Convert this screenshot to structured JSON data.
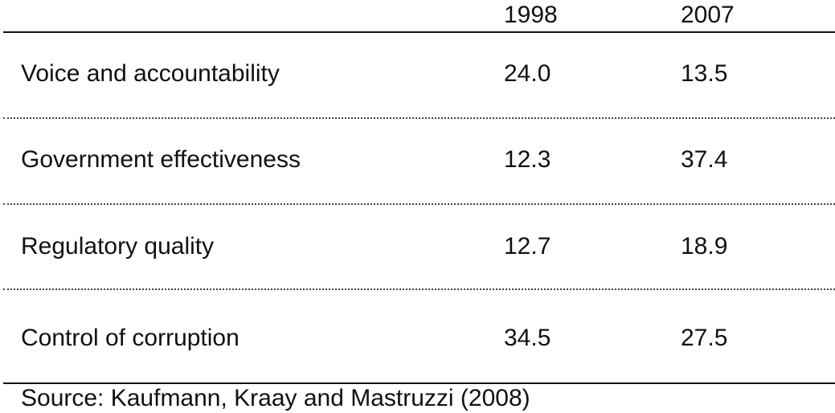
{
  "table": {
    "columns": [
      "1998",
      "2007"
    ],
    "rows": [
      {
        "label": "Voice and accountability",
        "v1998": "24.0",
        "v2007": "13.5"
      },
      {
        "label": "Government effectiveness",
        "v1998": "12.3",
        "v2007": "37.4"
      },
      {
        "label": "Regulatory quality",
        "v1998": "12.7",
        "v2007": "18.9"
      },
      {
        "label": "Control of corruption",
        "v1998": "34.5",
        "v2007": "27.5"
      }
    ],
    "source": "Source: Kaufmann, Kraay and Mastruzzi (2008)"
  }
}
